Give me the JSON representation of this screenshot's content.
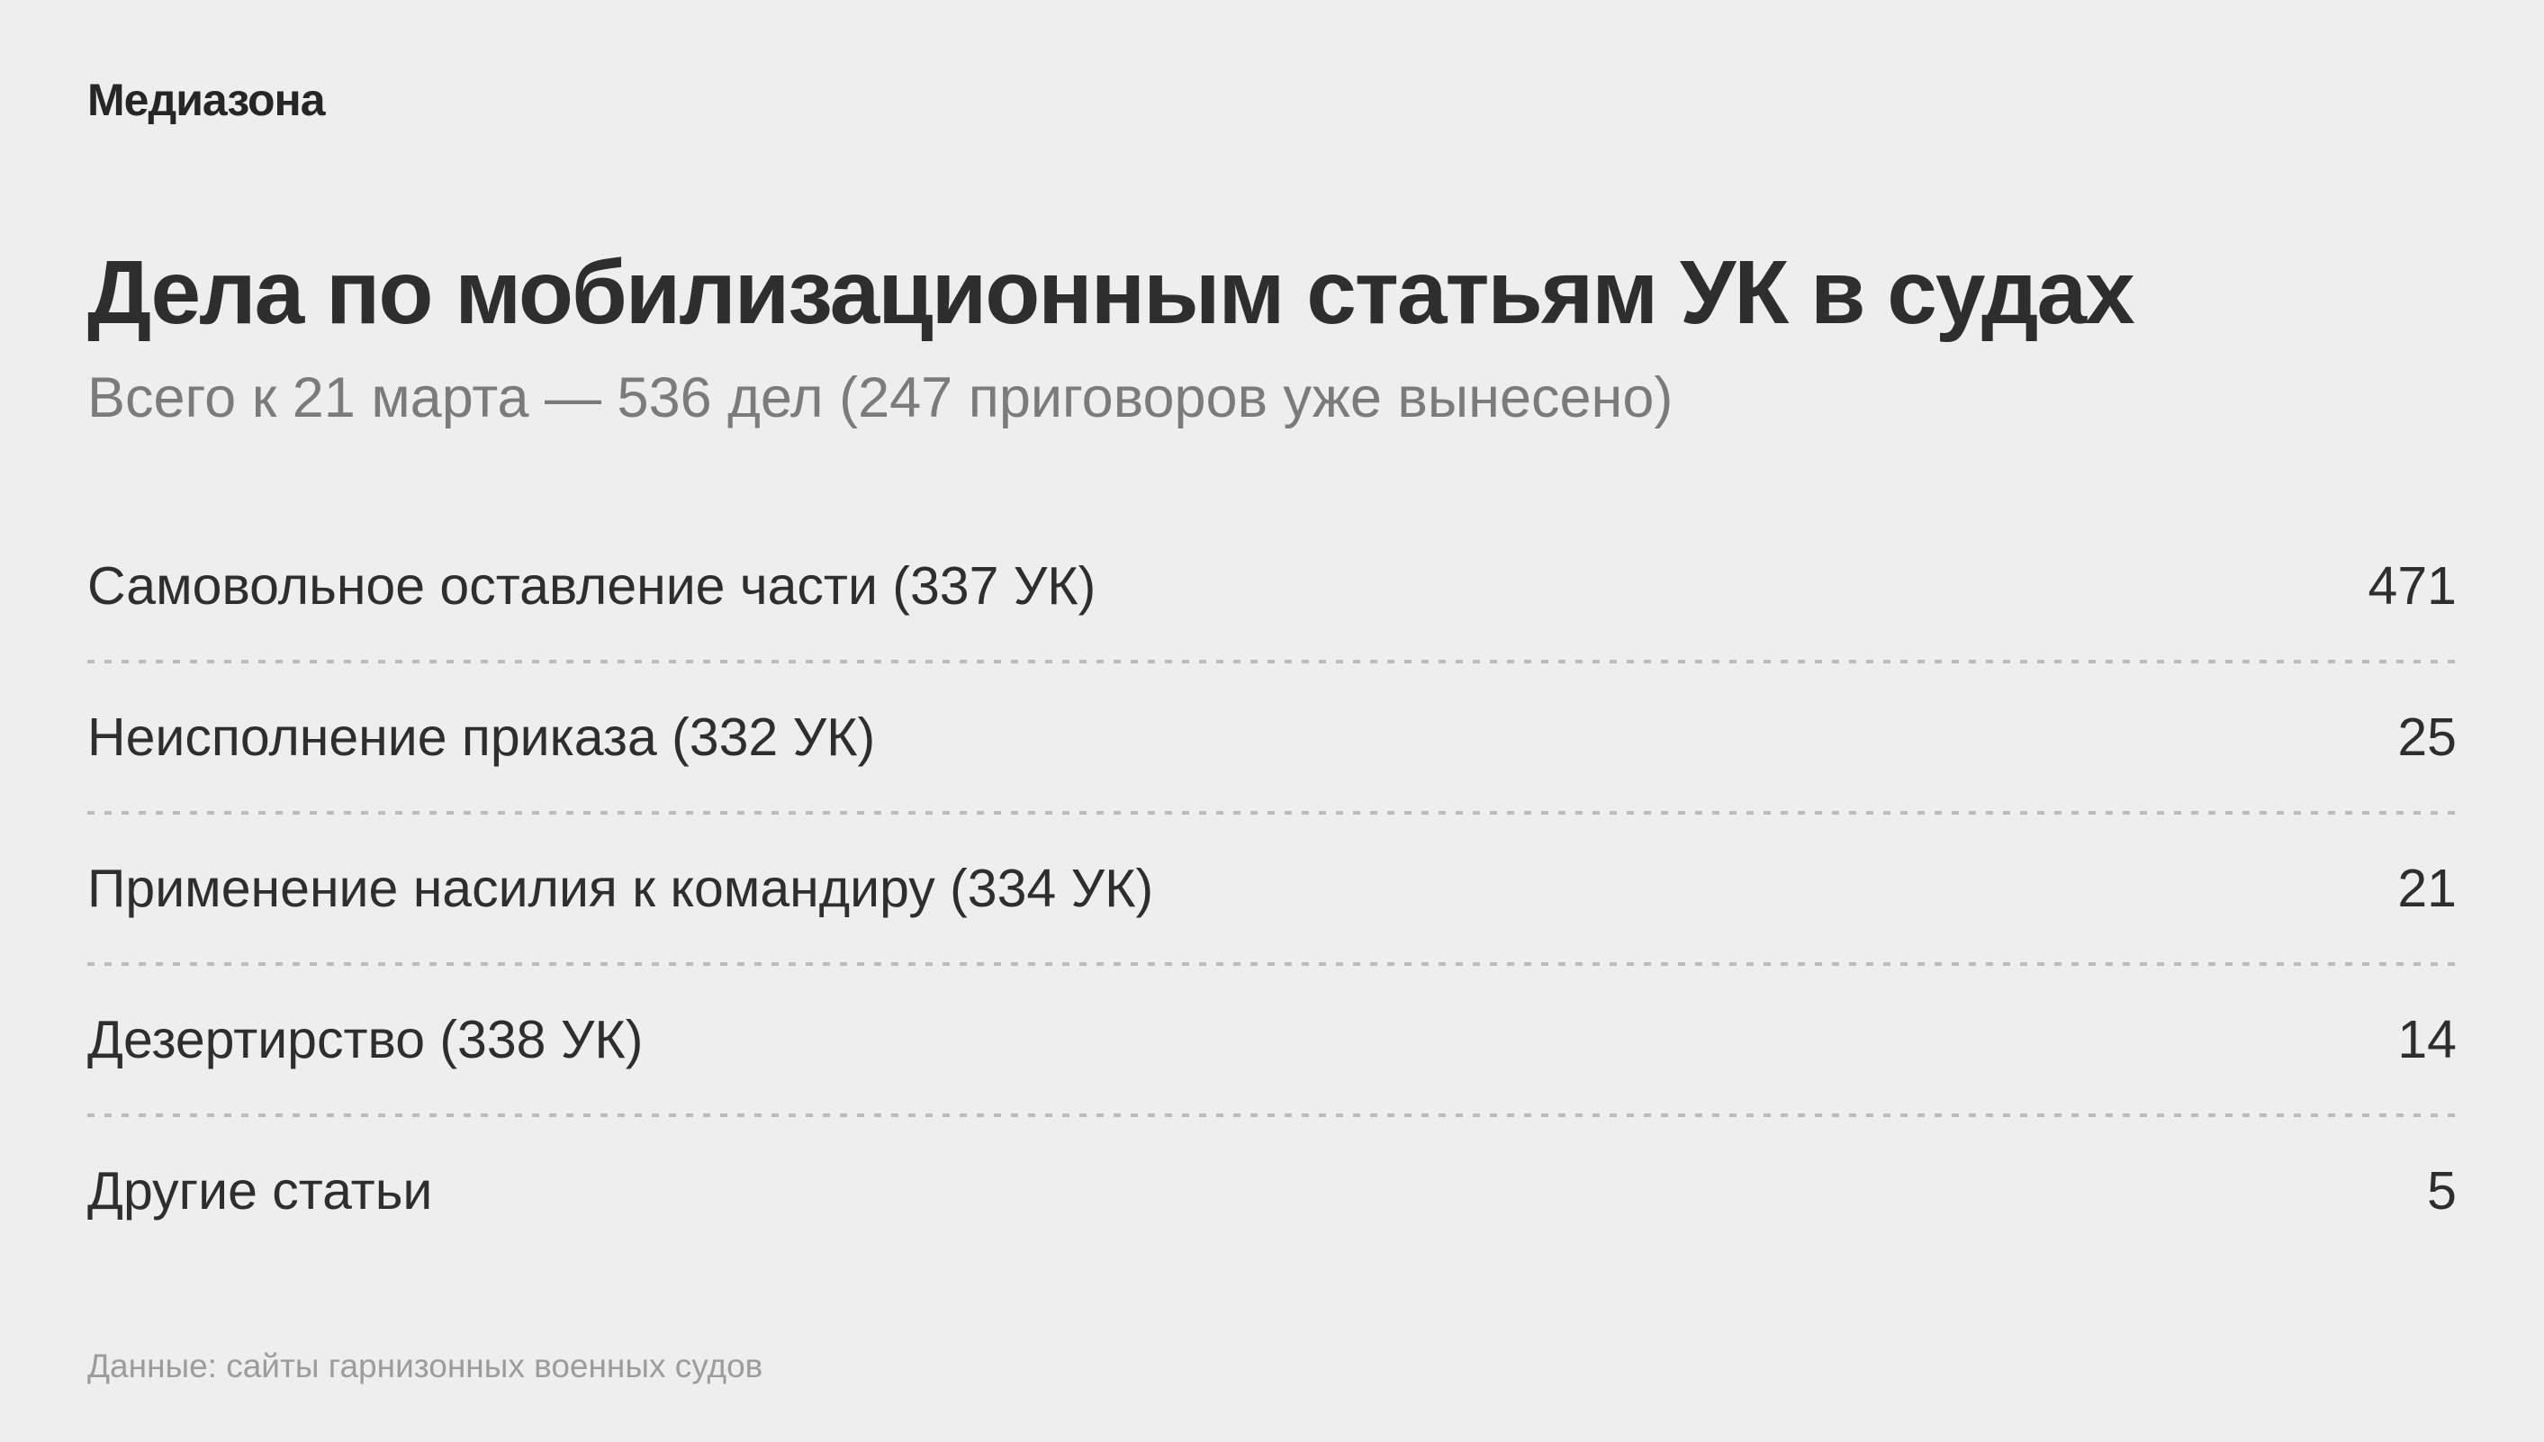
{
  "colors": {
    "background": "#eeeeee",
    "text_dark": "#2e2e2e",
    "text_subtitle": "#7b7b7b",
    "text_footer": "#9c9c9c",
    "divider": "#bcbcbc"
  },
  "logo": "Медиазона",
  "header": {
    "title": "Дела по мобилизационным статьям УК в судах",
    "subtitle": "Всего к 21 марта — 536 дел (247 приговоров уже вынесено)"
  },
  "chart_data": {
    "type": "table",
    "title": "Дела по мобилизационным статьям УК в судах",
    "subtitle": "Всего к 21 марта — 536 дел (247 приговоров уже вынесено)",
    "as_of_date": "21 марта",
    "total_cases": 536,
    "verdicts_issued": 247,
    "categories": [
      "Самовольное оставление части (337 УК)",
      "Неисполнение приказа (332 УК)",
      "Применение насилия к командиру (334 УК)",
      "Дезертирство (338 УК)",
      "Другие статьи"
    ],
    "values": [
      471,
      25,
      21,
      14,
      5
    ],
    "legend_position": "none",
    "grid": "dotted-row-separators"
  },
  "footer": {
    "source": "Данные: сайты гарнизонных военных судов"
  }
}
